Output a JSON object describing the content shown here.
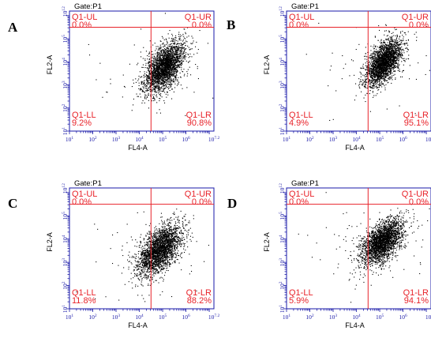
{
  "colors": {
    "frame": "#1a1aa8",
    "gate_line": "#e8232a",
    "quadrant_text": "#e8232a",
    "tick_text": "#1a1aa8",
    "dots": "#000000"
  },
  "chart_data": [
    {
      "type": "scatter",
      "panel": "A",
      "gate": "Gate:P1",
      "xlabel": "FL4-A",
      "ylabel": "FL2-A",
      "x_scale": "log",
      "y_scale": "log",
      "xlim": [
        10,
        15848932
      ],
      "ylim": [
        10,
        1000000000000
      ],
      "x_ticks": [
        {
          "base": "10",
          "exp": "1"
        },
        {
          "base": "10",
          "exp": "2"
        },
        {
          "base": "10",
          "exp": "3"
        },
        {
          "base": "10",
          "exp": "4"
        },
        {
          "base": "10",
          "exp": "5"
        },
        {
          "base": "10",
          "exp": "6"
        },
        {
          "base": "10",
          "exp": "7.2"
        }
      ],
      "y_ticks": [
        {
          "base": "10",
          "exp": "1"
        },
        {
          "base": "10",
          "exp": "2"
        },
        {
          "base": "10",
          "exp": "3"
        },
        {
          "base": "10",
          "exp": "4"
        },
        {
          "base": "10",
          "exp": "5"
        },
        {
          "base": "10",
          "exp": "12"
        }
      ],
      "quadrant_gate": {
        "x": 31623,
        "y": 316228
      },
      "quadrants": [
        {
          "name": "Q1-UL",
          "percent": "0.0%"
        },
        {
          "name": "Q1-UR",
          "percent": "0.0%"
        },
        {
          "name": "Q1-LL",
          "percent": "9.2%"
        },
        {
          "name": "Q1-LR",
          "percent": "90.8%"
        }
      ],
      "cluster": {
        "center_log_x": 5.05,
        "center_log_y": 3.75,
        "spread_log_x": 0.42,
        "spread_log_y": 0.55
      }
    },
    {
      "type": "scatter",
      "panel": "B",
      "gate": "Gate:P1",
      "xlabel": "FL4-A",
      "ylabel": "FL2-A",
      "x_scale": "log",
      "y_scale": "log",
      "xlim": [
        10,
        15848932
      ],
      "ylim": [
        10,
        1000000000000
      ],
      "x_ticks": [
        {
          "base": "10",
          "exp": "1"
        },
        {
          "base": "10",
          "exp": "2"
        },
        {
          "base": "10",
          "exp": "3"
        },
        {
          "base": "10",
          "exp": "4"
        },
        {
          "base": "10",
          "exp": "5"
        },
        {
          "base": "10",
          "exp": "6"
        },
        {
          "base": "10",
          "exp": "7.2"
        }
      ],
      "y_ticks": [
        {
          "base": "10",
          "exp": "1"
        },
        {
          "base": "10",
          "exp": "2"
        },
        {
          "base": "10",
          "exp": "3"
        },
        {
          "base": "10",
          "exp": "4"
        },
        {
          "base": "10",
          "exp": "5"
        },
        {
          "base": "10",
          "exp": "12"
        }
      ],
      "quadrant_gate": {
        "x": 31623,
        "y": 316228
      },
      "quadrants": [
        {
          "name": "Q1-UL",
          "percent": "0.0%"
        },
        {
          "name": "Q1-UR",
          "percent": "0.0%"
        },
        {
          "name": "Q1-LL",
          "percent": "4.9%"
        },
        {
          "name": "Q1-LR",
          "percent": "95.1%"
        }
      ],
      "cluster": {
        "center_log_x": 5.15,
        "center_log_y": 4.0,
        "spread_log_x": 0.38,
        "spread_log_y": 0.5
      }
    },
    {
      "type": "scatter",
      "panel": "C",
      "gate": "Gate:P1",
      "xlabel": "FL4-A",
      "ylabel": "FL2-A",
      "x_scale": "log",
      "y_scale": "log",
      "xlim": [
        10,
        15848932
      ],
      "ylim": [
        10,
        1000000000000
      ],
      "x_ticks": [
        {
          "base": "10",
          "exp": "1"
        },
        {
          "base": "10",
          "exp": "2"
        },
        {
          "base": "10",
          "exp": "3"
        },
        {
          "base": "10",
          "exp": "4"
        },
        {
          "base": "10",
          "exp": "5"
        },
        {
          "base": "10",
          "exp": "6"
        },
        {
          "base": "10",
          "exp": "7.2"
        }
      ],
      "y_ticks": [
        {
          "base": "10",
          "exp": "1"
        },
        {
          "base": "10",
          "exp": "2"
        },
        {
          "base": "10",
          "exp": "3"
        },
        {
          "base": "10",
          "exp": "4"
        },
        {
          "base": "10",
          "exp": "5"
        },
        {
          "base": "10",
          "exp": "12"
        }
      ],
      "quadrant_gate": {
        "x": 31623,
        "y": 316228
      },
      "quadrants": [
        {
          "name": "Q1-UL",
          "percent": "0.0%"
        },
        {
          "name": "Q1-UR",
          "percent": "0.0%"
        },
        {
          "name": "Q1-LL",
          "percent": "11.8%"
        },
        {
          "name": "Q1-LR",
          "percent": "88.2%"
        }
      ],
      "cluster": {
        "center_log_x": 4.85,
        "center_log_y": 3.55,
        "spread_log_x": 0.48,
        "spread_log_y": 0.55
      }
    },
    {
      "type": "scatter",
      "panel": "D",
      "gate": "Gate:P1",
      "xlabel": "FL4-A",
      "ylabel": "FL2-A",
      "x_scale": "log",
      "y_scale": "log",
      "xlim": [
        10,
        15848932
      ],
      "ylim": [
        10,
        1000000000000
      ],
      "x_ticks": [
        {
          "base": "10",
          "exp": "1"
        },
        {
          "base": "10",
          "exp": "2"
        },
        {
          "base": "10",
          "exp": "3"
        },
        {
          "base": "10",
          "exp": "4"
        },
        {
          "base": "10",
          "exp": "5"
        },
        {
          "base": "10",
          "exp": "6"
        },
        {
          "base": "10",
          "exp": "7.2"
        }
      ],
      "y_ticks": [
        {
          "base": "10",
          "exp": "1"
        },
        {
          "base": "10",
          "exp": "2"
        },
        {
          "base": "10",
          "exp": "3"
        },
        {
          "base": "10",
          "exp": "4"
        },
        {
          "base": "10",
          "exp": "5"
        },
        {
          "base": "10",
          "exp": "12"
        }
      ],
      "quadrant_gate": {
        "x": 31623,
        "y": 316228
      },
      "quadrants": [
        {
          "name": "Q1-UL",
          "percent": "0.0%"
        },
        {
          "name": "Q1-UR",
          "percent": "0.0%"
        },
        {
          "name": "Q1-LL",
          "percent": "5.9%"
        },
        {
          "name": "Q1-LR",
          "percent": "94.1%"
        }
      ],
      "cluster": {
        "center_log_x": 5.1,
        "center_log_y": 3.9,
        "spread_log_x": 0.45,
        "spread_log_y": 0.5
      }
    }
  ]
}
